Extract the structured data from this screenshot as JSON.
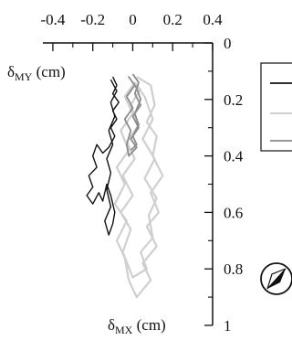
{
  "chart_data": {
    "type": "line",
    "x_axis": {
      "label_main": "δ",
      "label_sub": "MX",
      "label_unit": " (cm)",
      "ticks": [
        -0.4,
        -0.2,
        0,
        0.2,
        0.4
      ],
      "tick_labels": [
        "-0.4",
        "-0.2",
        "0",
        "0.2",
        "0.4"
      ],
      "range": [
        -0.45,
        0.4
      ]
    },
    "y_axis": {
      "label_main": "δ",
      "label_sub": "MY",
      "label_unit": " (cm)",
      "ticks": [
        0,
        0.2,
        0.4,
        0.6,
        0.8,
        1
      ],
      "tick_labels": [
        "0",
        "0.2",
        "0.4",
        "0.6",
        "0.8",
        "1"
      ],
      "range": [
        0,
        1
      ],
      "inverted": true
    },
    "grid": false,
    "legend": {
      "placement": "right-clipped",
      "series_colors": [
        "#111111",
        "#c8c8c8",
        "#8a8a8a"
      ]
    },
    "series": [
      {
        "color": "#cfcfcf",
        "points": [
          [
            0.02,
            0.12
          ],
          [
            0.09,
            0.15
          ],
          [
            0.11,
            0.22
          ],
          [
            0.07,
            0.28
          ],
          [
            0.12,
            0.33
          ],
          [
            0.1,
            0.4
          ],
          [
            0.15,
            0.47
          ],
          [
            0.09,
            0.53
          ],
          [
            0.13,
            0.6
          ],
          [
            0.07,
            0.65
          ],
          [
            0.12,
            0.72
          ],
          [
            0.05,
            0.78
          ],
          [
            0.09,
            0.84
          ],
          [
            0.02,
            0.9
          ],
          [
            -0.02,
            0.84
          ],
          [
            -0.04,
            0.76
          ],
          [
            -0.08,
            0.7
          ],
          [
            -0.03,
            0.63
          ],
          [
            -0.09,
            0.57
          ],
          [
            -0.04,
            0.5
          ],
          [
            -0.08,
            0.44
          ],
          [
            -0.02,
            0.38
          ],
          [
            -0.06,
            0.31
          ],
          [
            0.0,
            0.25
          ],
          [
            -0.04,
            0.19
          ],
          [
            0.01,
            0.14
          ],
          [
            0.06,
            0.19
          ],
          [
            0.1,
            0.27
          ],
          [
            0.05,
            0.34
          ],
          [
            0.11,
            0.41
          ],
          [
            0.06,
            0.48
          ],
          [
            0.12,
            0.55
          ],
          [
            0.08,
            0.61
          ],
          [
            0.1,
            0.69
          ],
          [
            0.04,
            0.74
          ],
          [
            0.07,
            0.8
          ],
          [
            0.0,
            0.83
          ],
          [
            -0.05,
            0.74
          ],
          [
            -0.01,
            0.66
          ],
          [
            -0.06,
            0.6
          ],
          [
            0.0,
            0.54
          ],
          [
            -0.05,
            0.47
          ],
          [
            0.01,
            0.41
          ],
          [
            -0.03,
            0.35
          ],
          [
            0.03,
            0.29
          ],
          [
            -0.01,
            0.22
          ],
          [
            0.04,
            0.16
          ]
        ]
      },
      {
        "color": "#8c8c8c",
        "points": [
          [
            0.0,
            0.11
          ],
          [
            0.03,
            0.14
          ],
          [
            0.01,
            0.18
          ],
          [
            0.04,
            0.22
          ],
          [
            0.0,
            0.26
          ],
          [
            0.03,
            0.3
          ],
          [
            -0.01,
            0.34
          ],
          [
            0.02,
            0.37
          ],
          [
            -0.02,
            0.4
          ],
          [
            -0.03,
            0.36
          ],
          [
            -0.01,
            0.31
          ],
          [
            -0.04,
            0.27
          ],
          [
            0.0,
            0.23
          ],
          [
            -0.03,
            0.19
          ],
          [
            0.01,
            0.15
          ],
          [
            -0.02,
            0.12
          ],
          [
            0.02,
            0.16
          ],
          [
            0.04,
            0.2
          ],
          [
            0.01,
            0.25
          ],
          [
            0.03,
            0.29
          ],
          [
            0.0,
            0.33
          ],
          [
            0.02,
            0.36
          ],
          [
            -0.01,
            0.38
          ]
        ]
      },
      {
        "color": "#111111",
        "points": [
          [
            -0.1,
            0.12
          ],
          [
            -0.08,
            0.15
          ],
          [
            -0.1,
            0.18
          ],
          [
            -0.07,
            0.21
          ],
          [
            -0.1,
            0.24
          ],
          [
            -0.08,
            0.27
          ],
          [
            -0.11,
            0.3
          ],
          [
            -0.09,
            0.33
          ],
          [
            -0.12,
            0.37
          ],
          [
            -0.15,
            0.39
          ],
          [
            -0.18,
            0.36
          ],
          [
            -0.2,
            0.4
          ],
          [
            -0.18,
            0.44
          ],
          [
            -0.22,
            0.47
          ],
          [
            -0.2,
            0.51
          ],
          [
            -0.23,
            0.54
          ],
          [
            -0.2,
            0.57
          ],
          [
            -0.17,
            0.53
          ],
          [
            -0.15,
            0.56
          ],
          [
            -0.13,
            0.5
          ],
          [
            -0.11,
            0.54
          ],
          [
            -0.09,
            0.6
          ],
          [
            -0.1,
            0.64
          ],
          [
            -0.12,
            0.68
          ],
          [
            -0.14,
            0.63
          ],
          [
            -0.11,
            0.58
          ],
          [
            -0.13,
            0.52
          ],
          [
            -0.11,
            0.46
          ],
          [
            -0.13,
            0.41
          ],
          [
            -0.1,
            0.36
          ],
          [
            -0.12,
            0.31
          ],
          [
            -0.09,
            0.26
          ],
          [
            -0.11,
            0.21
          ],
          [
            -0.08,
            0.17
          ],
          [
            -0.11,
            0.13
          ]
        ]
      }
    ]
  }
}
